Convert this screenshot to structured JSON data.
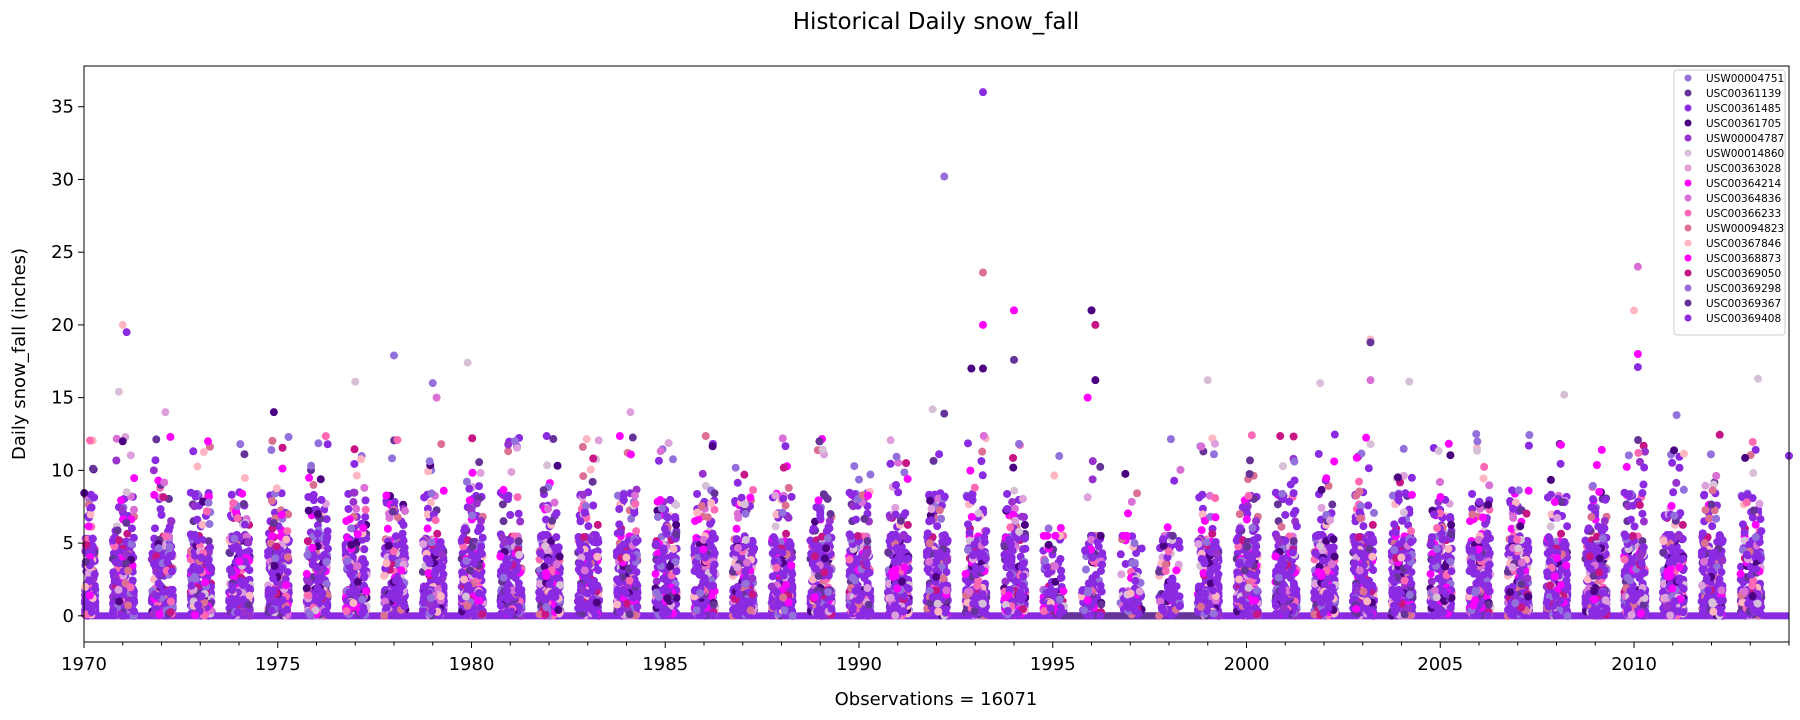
{
  "chart_data": {
    "type": "scatter",
    "title": "Historical Daily snow_fall",
    "xlabel": "Observations = 16071",
    "ylabel": "Daily snow_fall (inches)",
    "xlim": [
      1970,
      2014
    ],
    "ylim": [
      -1.8,
      37.8
    ],
    "x_ticks": [
      1970,
      1975,
      1980,
      1985,
      1990,
      1995,
      2000,
      2005,
      2010
    ],
    "y_ticks": [
      0,
      5,
      10,
      15,
      20,
      25,
      30,
      35
    ],
    "legend_position": "top-right",
    "series": [
      {
        "name": "USW00004751",
        "color": "#9370db"
      },
      {
        "name": "USC00361139",
        "color": "#663399"
      },
      {
        "name": "USC00361485",
        "color": "#8a2be2"
      },
      {
        "name": "USC00361705",
        "color": "#4b0082"
      },
      {
        "name": "USW00004787",
        "color": "#9932cc"
      },
      {
        "name": "USW00014860",
        "color": "#d8bfd8"
      },
      {
        "name": "USC00363028",
        "color": "#dda0dd"
      },
      {
        "name": "USC00364214",
        "color": "#ff00ff"
      },
      {
        "name": "USC00364836",
        "color": "#da70d6"
      },
      {
        "name": "USC00366233",
        "color": "#ff69b4"
      },
      {
        "name": "USW00094823",
        "color": "#db7093"
      },
      {
        "name": "USC00367846",
        "color": "#ffb6c1"
      },
      {
        "name": "USC00368873",
        "color": "#ff00ff"
      },
      {
        "name": "USC00369050",
        "color": "#c71585"
      },
      {
        "name": "USC00369298",
        "color": "#9370db"
      },
      {
        "name": "USC00369367",
        "color": "#663399"
      },
      {
        "name": "USC00369408",
        "color": "#8a2be2"
      }
    ],
    "notable_points": [
      {
        "x": 1971.0,
        "y": 12.0,
        "series": "USC00361705"
      },
      {
        "x": 1971.0,
        "y": 20.0,
        "series": "USC00367846"
      },
      {
        "x": 1971.1,
        "y": 19.5,
        "series": "USC00361485"
      },
      {
        "x": 1970.9,
        "y": 15.4,
        "series": "USW00014860"
      },
      {
        "x": 1972.1,
        "y": 14.0,
        "series": "USC00363028"
      },
      {
        "x": 1973.2,
        "y": 12.0,
        "series": "USC00364214"
      },
      {
        "x": 1974.9,
        "y": 14.0,
        "series": "USC00361705"
      },
      {
        "x": 1977.0,
        "y": 16.1,
        "series": "USW00014860"
      },
      {
        "x": 1978.0,
        "y": 17.9,
        "series": "USW00004751"
      },
      {
        "x": 1979.0,
        "y": 16.0,
        "series": "USW00004751"
      },
      {
        "x": 1979.1,
        "y": 15.0,
        "series": "USC00364836"
      },
      {
        "x": 1979.9,
        "y": 17.4,
        "series": "USW00014860"
      },
      {
        "x": 1984.1,
        "y": 14.0,
        "series": "USC00363028"
      },
      {
        "x": 1991.9,
        "y": 14.2,
        "series": "USW00014860"
      },
      {
        "x": 1992.2,
        "y": 30.2,
        "series": "USW00004751"
      },
      {
        "x": 1992.2,
        "y": 13.9,
        "series": "USC00361139"
      },
      {
        "x": 1993.2,
        "y": 36.0,
        "series": "USC00361485"
      },
      {
        "x": 1993.2,
        "y": 23.6,
        "series": "USW00094823"
      },
      {
        "x": 1993.2,
        "y": 20.0,
        "series": "USC00368873"
      },
      {
        "x": 1992.9,
        "y": 17.0,
        "series": "USC00361705"
      },
      {
        "x": 1993.2,
        "y": 17.0,
        "series": "USC00361705"
      },
      {
        "x": 1994.0,
        "y": 21.0,
        "series": "USC00364214"
      },
      {
        "x": 1994.0,
        "y": 17.6,
        "series": "USC00361139"
      },
      {
        "x": 1996.0,
        "y": 21.0,
        "series": "USC00361705"
      },
      {
        "x": 1996.1,
        "y": 20.0,
        "series": "USC00369050"
      },
      {
        "x": 1995.9,
        "y": 15.0,
        "series": "USC00368873"
      },
      {
        "x": 1996.1,
        "y": 16.2,
        "series": "USC00361705"
      },
      {
        "x": 1999.0,
        "y": 16.2,
        "series": "USW00014860"
      },
      {
        "x": 2001.9,
        "y": 16.0,
        "series": "USW00014860"
      },
      {
        "x": 2003.2,
        "y": 19.0,
        "series": "USC00367846"
      },
      {
        "x": 2003.2,
        "y": 18.8,
        "series": "USC00361139"
      },
      {
        "x": 2003.2,
        "y": 16.2,
        "series": "USC00364836"
      },
      {
        "x": 2004.2,
        "y": 16.1,
        "series": "USW00014860"
      },
      {
        "x": 2008.2,
        "y": 15.2,
        "series": "USW00014860"
      },
      {
        "x": 2010.1,
        "y": 24.0,
        "series": "USC00364836"
      },
      {
        "x": 2010.0,
        "y": 21.0,
        "series": "USC00367846"
      },
      {
        "x": 2010.1,
        "y": 18.0,
        "series": "USC00368873"
      },
      {
        "x": 2010.1,
        "y": 17.1,
        "series": "USC00361485"
      },
      {
        "x": 2011.1,
        "y": 13.8,
        "series": "USW00004751"
      },
      {
        "x": 2013.2,
        "y": 16.3,
        "series": "USW00014860"
      },
      {
        "x": 2014.0,
        "y": 11.0,
        "series": "USC00361485"
      }
    ]
  }
}
